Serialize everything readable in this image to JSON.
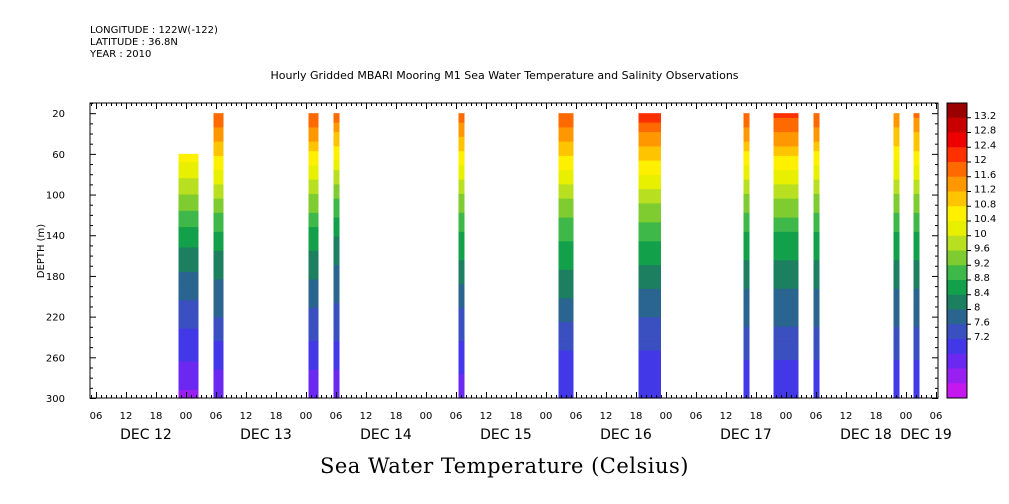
{
  "header": {
    "longitude": "LONGITUDE : 122W(-122)",
    "latitude": "LATITUDE : 36.8N",
    "year": "YEAR : 2010"
  },
  "chart_data": {
    "type": "heatmap",
    "title": "Hourly Gridded MBARI Mooring M1 Sea Water Temperature and Salinity Observations",
    "xlabel": "",
    "ylabel": "DEPTH (m)",
    "colorbar_label": "Sea Water Temperature (Celsius)",
    "ylim": [
      300,
      10
    ],
    "y_ticks": [
      20,
      60,
      100,
      140,
      180,
      220,
      260,
      300
    ],
    "x_hour_range": [
      0,
      168
    ],
    "x_tick_labels": [
      "06",
      "12",
      "18",
      "00",
      "06",
      "12",
      "18",
      "00",
      "06",
      "12",
      "18",
      "00",
      "06",
      "12",
      "18",
      "00",
      "06",
      "12",
      "18",
      "00",
      "06",
      "12",
      "18",
      "00",
      "06",
      "12",
      "18",
      "00",
      "06"
    ],
    "day_labels": [
      {
        "label": "DEC 12",
        "hour": 6
      },
      {
        "label": "DEC 13",
        "hour": 30
      },
      {
        "label": "DEC 14",
        "hour": 54
      },
      {
        "label": "DEC 15",
        "hour": 78
      },
      {
        "label": "DEC 16",
        "hour": 102
      },
      {
        "label": "DEC 17",
        "hour": 126
      },
      {
        "label": "DEC 18",
        "hour": 150
      },
      {
        "label": "DEC 19",
        "hour": 162
      }
    ],
    "colorbar_levels": [
      "13.2",
      "12.8",
      "12.4",
      "12",
      "11.6",
      "11.2",
      "10.8",
      "10.4",
      "10",
      "9.6",
      "9.2",
      "8.8",
      "8.4",
      "8",
      "7.6",
      "7.2"
    ],
    "colorbar_colors": [
      "#9b0000",
      "#c80000",
      "#ee0000",
      "#ff3000",
      "#ff6a00",
      "#ff9800",
      "#ffc400",
      "#fff000",
      "#e8f000",
      "#b8e020",
      "#7fcc30",
      "#3fb84a",
      "#13a04a",
      "#1c8060",
      "#2a6590",
      "#3a4fc0",
      "#4238e8",
      "#6a28f0",
      "#9820f0",
      "#c418ee"
    ],
    "series": [
      {
        "t0": 16.5,
        "t1": 20.5,
        "top": 60,
        "values": [
          11.0,
          10.3,
          9.6,
          9.0,
          8.6,
          8.2,
          7.8,
          7.4
        ]
      },
      {
        "t0": 23.5,
        "t1": 25.5,
        "top": 20,
        "values": [
          12.2,
          11.3,
          10.3,
          9.4,
          8.9,
          8.5,
          8.0,
          7.5
        ]
      },
      {
        "t0": 42.5,
        "t1": 44.5,
        "top": 20,
        "values": [
          12.2,
          11.2,
          10.2,
          9.4,
          8.9,
          8.4,
          8.0,
          7.5
        ]
      },
      {
        "t0": 47.5,
        "t1": 48.7,
        "top": 20,
        "values": [
          12.1,
          11.0,
          9.9,
          9.2,
          8.7,
          8.4,
          8.0,
          7.5
        ]
      },
      {
        "t0": 72.5,
        "t1": 73.7,
        "top": 20,
        "values": [
          12.1,
          11.1,
          10.2,
          9.5,
          9.0,
          8.4,
          8.0,
          7.6
        ]
      },
      {
        "t0": 92.5,
        "t1": 95.5,
        "top": 20,
        "values": [
          12.2,
          11.3,
          10.3,
          9.6,
          9.1,
          8.6,
          8.1,
          7.9
        ]
      },
      {
        "t0": 108.5,
        "t1": 113.0,
        "top": 20,
        "values": [
          12.4,
          11.4,
          10.4,
          9.6,
          9.0,
          8.5,
          8.1,
          7.9
        ]
      },
      {
        "t0": 129.5,
        "t1": 130.7,
        "top": 20,
        "values": [
          12.2,
          11.2,
          10.2,
          9.5,
          9.0,
          8.6,
          8.2,
          7.9
        ]
      },
      {
        "t0": 135.5,
        "t1": 140.5,
        "top": 20,
        "values": [
          12.4,
          11.3,
          10.3,
          9.5,
          9.0,
          8.6,
          8.2,
          7.9
        ]
      },
      {
        "t0": 143.5,
        "t1": 144.7,
        "top": 20,
        "values": [
          12.2,
          11.2,
          10.2,
          9.5,
          9.0,
          8.6,
          8.2,
          7.9
        ]
      },
      {
        "t0": 159.5,
        "t1": 160.7,
        "top": 20,
        "values": [
          11.9,
          11.0,
          10.2,
          9.5,
          9.0,
          8.6,
          8.2,
          7.9
        ]
      },
      {
        "t0": 163.5,
        "t1": 164.7,
        "top": 20,
        "values": [
          12.0,
          11.1,
          10.2,
          9.5,
          9.0,
          8.6,
          8.2,
          7.9
        ]
      }
    ],
    "grid": false,
    "legend": "right"
  }
}
